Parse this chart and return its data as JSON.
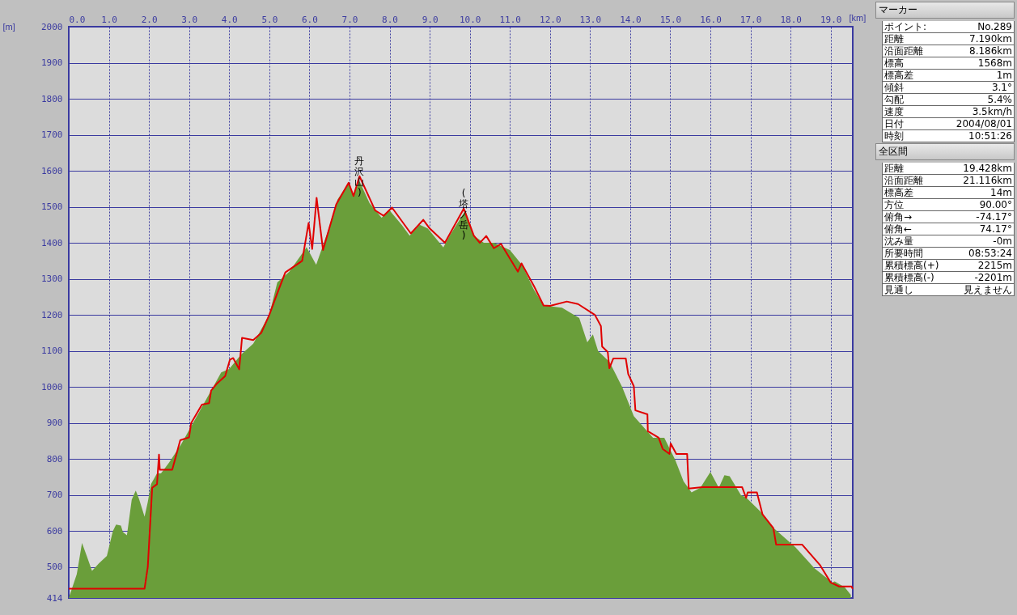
{
  "chart_data": [
    {
      "type": "area",
      "xlabel": "[km]",
      "ylabel": "[m]",
      "xlim": [
        0,
        19.55
      ],
      "ylim": [
        414,
        2000
      ],
      "xticks": [
        {
          "value": 0,
          "label": "0.0"
        },
        {
          "value": 1,
          "label": "1.0"
        },
        {
          "value": 2,
          "label": "2.0"
        },
        {
          "value": 3,
          "label": "3.0"
        },
        {
          "value": 4,
          "label": "4.0"
        },
        {
          "value": 5,
          "label": "5.0"
        },
        {
          "value": 6,
          "label": "6.0"
        },
        {
          "value": 7,
          "label": "7.0"
        },
        {
          "value": 8,
          "label": "8.0"
        },
        {
          "value": 9,
          "label": "9.0"
        },
        {
          "value": 10,
          "label": "10.0"
        },
        {
          "value": 11,
          "label": "11.0"
        },
        {
          "value": 12,
          "label": "12.0"
        },
        {
          "value": 13,
          "label": "13.0"
        },
        {
          "value": 14,
          "label": "14.0"
        },
        {
          "value": 15,
          "label": "15.0"
        },
        {
          "value": 16,
          "label": "16.0"
        },
        {
          "value": 17,
          "label": "17.0"
        },
        {
          "value": 18,
          "label": "18.0"
        },
        {
          "value": 19,
          "label": "19.0"
        }
      ],
      "yticks": [
        414,
        500,
        600,
        700,
        800,
        900,
        1000,
        1100,
        1200,
        1300,
        1400,
        1500,
        1600,
        1700,
        1800,
        1900,
        2000
      ],
      "grid": true,
      "series": [
        {
          "type": "area",
          "color": "#6a9e3a",
          "x": [
            0,
            0.2,
            0.33,
            0.45,
            0.58,
            0.75,
            0.95,
            1.1,
            1.18,
            1.3,
            1.35,
            1.45,
            1.57,
            1.67,
            1.75,
            1.89,
            1.97,
            2.05,
            2.2,
            2.3,
            2.5,
            2.8,
            3.0,
            3.3,
            3.6,
            3.8,
            4.0,
            4.3,
            4.6,
            5.0,
            5.2,
            5.5,
            5.93,
            6.17,
            6.48,
            6.7,
            6.98,
            7.1,
            7.25,
            7.5,
            7.8,
            8.0,
            8.3,
            8.5,
            8.75,
            8.95,
            9.34,
            9.5,
            9.89,
            10.1,
            10.35,
            10.6,
            11.0,
            11.3,
            11.6,
            11.84,
            12.3,
            12.73,
            12.93,
            13.07,
            13.2,
            13.48,
            13.8,
            14.09,
            14.57,
            14.85,
            15.12,
            15.33,
            15.53,
            15.75,
            16.0,
            16.21,
            16.35,
            16.48,
            16.76,
            16.89,
            17.24,
            17.57,
            18.12,
            18.6,
            18.94,
            19.0,
            19.1,
            19.35,
            19.5
          ],
          "values": [
            414,
            480,
            567,
            530,
            489,
            510,
            531,
            600,
            618,
            615,
            597,
            588,
            687,
            712,
            690,
            640,
            680,
            730,
            760,
            760,
            790,
            840,
            880,
            940,
            1000,
            1040,
            1050,
            1090,
            1120,
            1200,
            1290,
            1320,
            1388,
            1339,
            1438,
            1520,
            1567,
            1534,
            1571,
            1510,
            1470,
            1490,
            1450,
            1420,
            1450,
            1440,
            1387,
            1420,
            1490,
            1420,
            1400,
            1400,
            1380,
            1339,
            1270,
            1226,
            1220,
            1191,
            1124,
            1146,
            1100,
            1070,
            1000,
            919,
            859,
            859,
            798,
            738,
            707,
            720,
            764,
            720,
            755,
            752,
            700,
            693,
            655,
            609,
            555,
            496,
            466,
            455,
            460,
            444,
            423
          ]
        },
        {
          "type": "line",
          "color": "#e00000",
          "x": [
            0,
            1.89,
            1.97,
            2.08,
            2.2,
            2.25,
            2.27,
            2.58,
            2.78,
            3.0,
            3.05,
            3.32,
            3.5,
            3.55,
            3.7,
            3.9,
            4.02,
            4.1,
            4.25,
            4.32,
            4.6,
            4.8,
            5.0,
            5.2,
            5.4,
            5.82,
            5.98,
            6.07,
            6.18,
            6.34,
            6.67,
            6.98,
            7.1,
            7.25,
            7.64,
            7.85,
            8.06,
            8.53,
            8.84,
            9.0,
            9.38,
            9.85,
            10.1,
            10.25,
            10.41,
            10.6,
            10.78,
            11.2,
            11.29,
            11.6,
            11.84,
            12.0,
            12.42,
            12.7,
            13.12,
            13.27,
            13.3,
            13.44,
            13.48,
            13.58,
            13.89,
            13.95,
            14.09,
            14.13,
            14.43,
            14.44,
            14.71,
            14.81,
            14.98,
            15.01,
            15.15,
            15.42,
            15.46,
            15.8,
            16.79,
            16.89,
            16.93,
            17.16,
            17.3,
            17.57,
            17.64,
            18.29,
            18.73,
            19.0,
            19.21,
            19.52,
            19.55
          ],
          "values": [
            440,
            440,
            500,
            720,
            730,
            812,
            770,
            770,
            852,
            860,
            899,
            951,
            955,
            990,
            1010,
            1030,
            1076,
            1080,
            1049,
            1136,
            1130,
            1150,
            1200,
            1260,
            1318,
            1350,
            1455,
            1383,
            1525,
            1380,
            1507,
            1567,
            1530,
            1585,
            1490,
            1475,
            1498,
            1426,
            1464,
            1440,
            1400,
            1495,
            1420,
            1400,
            1419,
            1385,
            1397,
            1320,
            1343,
            1280,
            1226,
            1225,
            1237,
            1230,
            1200,
            1169,
            1112,
            1097,
            1052,
            1079,
            1079,
            1036,
            1002,
            935,
            924,
            877,
            859,
            828,
            814,
            843,
            814,
            814,
            718,
            722,
            722,
            692,
            707,
            707,
            646,
            608,
            562,
            562,
            506,
            457,
            446,
            446,
            439
          ]
        }
      ],
      "annotations": [
        {
          "text": "丹沢山)",
          "x": 7.25,
          "y": 1585
        },
        {
          "text": "(塔ノ岳)",
          "x": 9.85,
          "y": 1495
        }
      ]
    },
    {
      "type": "other",
      "title": "マーカー",
      "annotations": [
        "ポイント:",
        "No.289",
        "距離",
        "7.190km",
        "沿面距離",
        "8.186km",
        "標高",
        "1568m",
        "標高差",
        "1m",
        "傾斜",
        "3.1°",
        "勾配",
        "5.4%",
        "速度",
        "3.5km/h",
        "日付",
        "2004/08/01",
        "時刻",
        "10:51:26"
      ]
    },
    {
      "type": "other",
      "title": "全区間",
      "annotations": [
        "距離",
        "19.428km",
        "沿面距離",
        "21.116km",
        "標高差",
        "14m",
        "方位",
        "90.00°",
        "俯角→",
        "-74.17°",
        "俯角←",
        "74.17°",
        "沈み量",
        "-0m",
        "所要時間",
        "08:53:24",
        "累積標高(+)",
        "2215m",
        "累積標高(-)",
        "-2201m",
        "見通し",
        "見えません"
      ]
    }
  ]
}
